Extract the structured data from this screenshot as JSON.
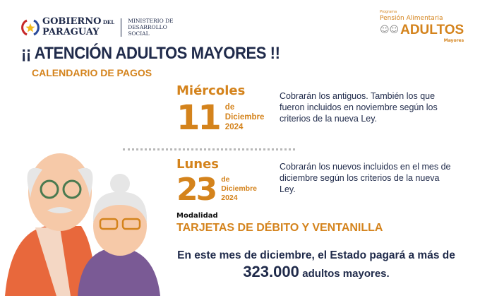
{
  "header": {
    "gov_line1": "GOBIERNO",
    "gov_del": "DEL",
    "gov_line2": "PARAGUAY",
    "ministry": [
      "MINISTERIO DE",
      "DESARROLLO",
      "SOCIAL"
    ],
    "program": {
      "label": "Programa",
      "name": "Pensión Alimentaria",
      "title": "ADULTOS",
      "subtitle": "Mayores"
    }
  },
  "title": "¡¡ ATENCIÓN ADULTOS MAYORES !!",
  "subtitle": "CALENDARIO DE PAGOS",
  "payments": [
    {
      "weekday": "Miércoles",
      "day": "11",
      "of": "de",
      "month": "Diciembre",
      "year": "2024",
      "text": "Cobrarán los antiguos. También los que fueron incluidos en noviembre según los criterios de la nueva Ley."
    },
    {
      "weekday": "Lunes",
      "day": "23",
      "of": "de",
      "month": "Diciembre",
      "year": "2024",
      "text": "Cobrarán los nuevos incluidos en el mes de diciembre según los criterios de la nueva Ley."
    }
  ],
  "modality": {
    "label": "Modalidad",
    "value": "TARJETAS DE DÉBITO Y VENTANILLA"
  },
  "footer": {
    "line1": "En este mes de diciembre, el Estado pagará a más de",
    "count": "323.000",
    "line2": "adultos mayores."
  },
  "colors": {
    "orange": "#d4831c",
    "navy": "#1f2a4a"
  }
}
